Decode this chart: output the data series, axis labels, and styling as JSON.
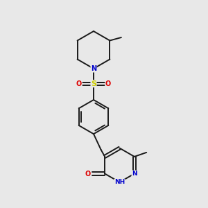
{
  "background_color": "#e8e8e8",
  "bond_color": "#1a1a1a",
  "N_color": "#0000cc",
  "O_color": "#dd0000",
  "S_color": "#cccc00",
  "figsize": [
    3.0,
    3.0
  ],
  "dpi": 100,
  "xlim": [
    0,
    10
  ],
  "ylim": [
    0,
    10
  ]
}
